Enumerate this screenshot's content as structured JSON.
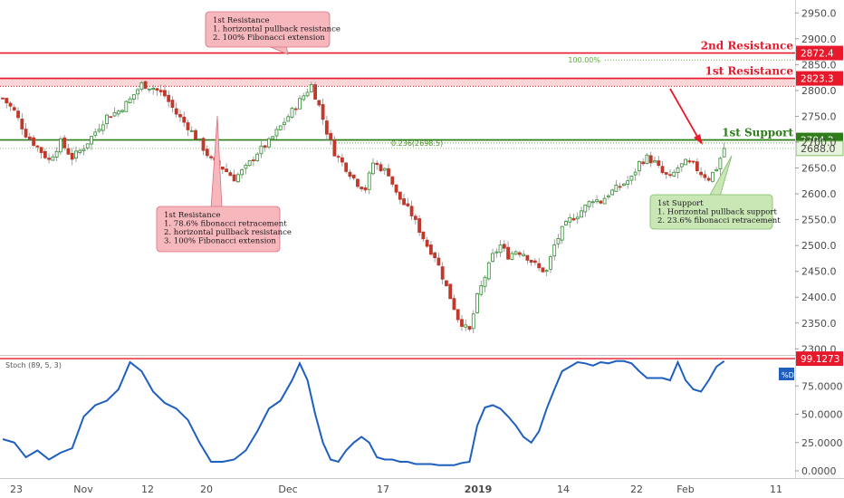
{
  "chart_data": [
    {
      "type": "candlestick",
      "title": "",
      "x_tick_labels": [
        "23",
        "Nov",
        "12",
        "20",
        "Dec",
        "17",
        "2019",
        "14",
        "22",
        "Feb",
        "11"
      ],
      "ylim": [
        2290,
        2975
      ],
      "y_ticks": [
        2300,
        2350,
        2400,
        2450,
        2500,
        2550,
        2600,
        2650,
        2700,
        2750,
        2800,
        2850,
        2900,
        2950
      ],
      "y_tick_labels": [
        "2300.0",
        "2350.0",
        "2400.0",
        "2450.0",
        "2500.0",
        "2550.0",
        "2600.0",
        "2650.0",
        "2700.0",
        "2750.0",
        "2800.0",
        "2850.0",
        "2900.0",
        "2950.0"
      ],
      "close_path": [
        [
          0,
          2785
        ],
        [
          3,
          2760
        ],
        [
          6,
          2715
        ],
        [
          9,
          2690
        ],
        [
          12,
          2665
        ],
        [
          15,
          2700
        ],
        [
          18,
          2670
        ],
        [
          21,
          2690
        ],
        [
          24,
          2720
        ],
        [
          27,
          2750
        ],
        [
          30,
          2760
        ],
        [
          33,
          2782
        ],
        [
          36,
          2812
        ],
        [
          39,
          2805
        ],
        [
          42,
          2790
        ],
        [
          45,
          2755
        ],
        [
          48,
          2730
        ],
        [
          51,
          2700
        ],
        [
          54,
          2665
        ],
        [
          57,
          2650
        ],
        [
          60,
          2630
        ],
        [
          63,
          2650
        ],
        [
          66,
          2680
        ],
        [
          69,
          2700
        ],
        [
          72,
          2730
        ],
        [
          75,
          2760
        ],
        [
          78,
          2790
        ],
        [
          80,
          2810
        ],
        [
          82,
          2770
        ],
        [
          84,
          2720
        ],
        [
          86,
          2680
        ],
        [
          88,
          2660
        ],
        [
          90,
          2640
        ],
        [
          92,
          2620
        ],
        [
          94,
          2610
        ],
        [
          96,
          2660
        ],
        [
          98,
          2650
        ],
        [
          100,
          2640
        ],
        [
          102,
          2600
        ],
        [
          104,
          2580
        ],
        [
          106,
          2560
        ],
        [
          108,
          2530
        ],
        [
          110,
          2500
        ],
        [
          112,
          2480
        ],
        [
          114,
          2440
        ],
        [
          116,
          2400
        ],
        [
          118,
          2360
        ],
        [
          120,
          2340
        ],
        [
          121,
          2335
        ],
        [
          123,
          2400
        ],
        [
          125,
          2440
        ],
        [
          127,
          2480
        ],
        [
          129,
          2500
        ],
        [
          131,
          2480
        ],
        [
          133,
          2490
        ],
        [
          135,
          2485
        ],
        [
          137,
          2470
        ],
        [
          139,
          2455
        ],
        [
          141,
          2450
        ],
        [
          143,
          2500
        ],
        [
          145,
          2530
        ],
        [
          147,
          2550
        ],
        [
          149,
          2560
        ],
        [
          151,
          2575
        ],
        [
          153,
          2590
        ],
        [
          155,
          2585
        ],
        [
          157,
          2600
        ],
        [
          159,
          2610
        ],
        [
          161,
          2620
        ],
        [
          163,
          2630
        ],
        [
          165,
          2660
        ],
        [
          167,
          2670
        ],
        [
          169,
          2660
        ],
        [
          171,
          2640
        ],
        [
          173,
          2630
        ],
        [
          175,
          2650
        ],
        [
          177,
          2660
        ],
        [
          179,
          2655
        ],
        [
          181,
          2640
        ],
        [
          183,
          2630
        ],
        [
          185,
          2650
        ],
        [
          187,
          2688
        ]
      ],
      "fibonacci": [
        {
          "label": "100.00%",
          "level": 2859
        },
        {
          "label": "0.236(2698.5)",
          "level": 2698.5
        }
      ],
      "levels": [
        {
          "label": "2nd Resistance",
          "value": 2872.4,
          "tag": "2872.4",
          "color": "#e8192b"
        },
        {
          "label": "1st Resistance",
          "value": 2823.3,
          "tag": "2823.3",
          "color": "#e8192b"
        },
        {
          "label": "1st Support",
          "value": 2704.2,
          "tag": "2704.2",
          "color": "#2e7d1a"
        }
      ],
      "last_price": {
        "value": 2688.0,
        "tag": "2688.0"
      },
      "annotations": [
        {
          "id": "top",
          "lines": [
            "1st Resistance",
            "1. horizontal pullback resistance",
            "2. 100% Fibonacci extension"
          ]
        },
        {
          "id": "mid",
          "lines": [
            "1st Resistance",
            "1. 78.6% fibonacci retracement",
            "2. horizontal pullback resistance",
            "3. 100% Fibonacci extension"
          ]
        },
        {
          "id": "sup",
          "lines": [
            "1st Support",
            "1. Horizontal pullback support",
            "2. 23.6% fibonacci retracement"
          ]
        }
      ]
    },
    {
      "type": "line",
      "title": "Stoch (89, 5, 3)",
      "ylim": [
        0,
        100
      ],
      "y_ticks": [
        0,
        25,
        50,
        75
      ],
      "y_tick_labels": [
        "0.0000",
        "25.0000",
        "50.0000",
        "75.0000"
      ],
      "series": [
        {
          "name": "%D",
          "color": "#1f5fbf",
          "points": [
            [
              0,
              28
            ],
            [
              3,
              25
            ],
            [
              6,
              12
            ],
            [
              9,
              18
            ],
            [
              12,
              10
            ],
            [
              15,
              16
            ],
            [
              18,
              20
            ],
            [
              21,
              48
            ],
            [
              24,
              58
            ],
            [
              27,
              62
            ],
            [
              30,
              72
            ],
            [
              33,
              96
            ],
            [
              36,
              88
            ],
            [
              39,
              70
            ],
            [
              42,
              60
            ],
            [
              45,
              55
            ],
            [
              48,
              45
            ],
            [
              51,
              25
            ],
            [
              54,
              8
            ],
            [
              57,
              8
            ],
            [
              60,
              10
            ],
            [
              63,
              18
            ],
            [
              66,
              35
            ],
            [
              69,
              55
            ],
            [
              72,
              62
            ],
            [
              75,
              80
            ],
            [
              77,
              95
            ],
            [
              79,
              80
            ],
            [
              81,
              50
            ],
            [
              83,
              25
            ],
            [
              85,
              10
            ],
            [
              87,
              8
            ],
            [
              89,
              18
            ],
            [
              91,
              25
            ],
            [
              93,
              30
            ],
            [
              95,
              25
            ],
            [
              97,
              12
            ],
            [
              99,
              10
            ],
            [
              101,
              10
            ],
            [
              103,
              8
            ],
            [
              105,
              8
            ],
            [
              107,
              6
            ],
            [
              109,
              6
            ],
            [
              111,
              6
            ],
            [
              113,
              5
            ],
            [
              115,
              5
            ],
            [
              117,
              5
            ],
            [
              119,
              7
            ],
            [
              121,
              8
            ],
            [
              123,
              40
            ],
            [
              125,
              56
            ],
            [
              127,
              58
            ],
            [
              129,
              55
            ],
            [
              131,
              48
            ],
            [
              133,
              40
            ],
            [
              135,
              30
            ],
            [
              137,
              25
            ],
            [
              139,
              35
            ],
            [
              141,
              55
            ],
            [
              143,
              72
            ],
            [
              145,
              88
            ],
            [
              147,
              92
            ],
            [
              149,
              96
            ],
            [
              151,
              95
            ],
            [
              153,
              93
            ],
            [
              155,
              96
            ],
            [
              157,
              95
            ],
            [
              159,
              97
            ],
            [
              161,
              97
            ],
            [
              163,
              95
            ],
            [
              165,
              88
            ],
            [
              167,
              82
            ],
            [
              169,
              82
            ],
            [
              171,
              82
            ],
            [
              173,
              80
            ],
            [
              175,
              96
            ],
            [
              177,
              80
            ],
            [
              179,
              72
            ],
            [
              181,
              70
            ],
            [
              183,
              80
            ],
            [
              185,
              92
            ],
            [
              187,
              97
            ]
          ]
        }
      ],
      "level": {
        "value": 99.1273,
        "tag": "99.1273",
        "color": "#e8192b"
      },
      "legend": "%D"
    }
  ]
}
